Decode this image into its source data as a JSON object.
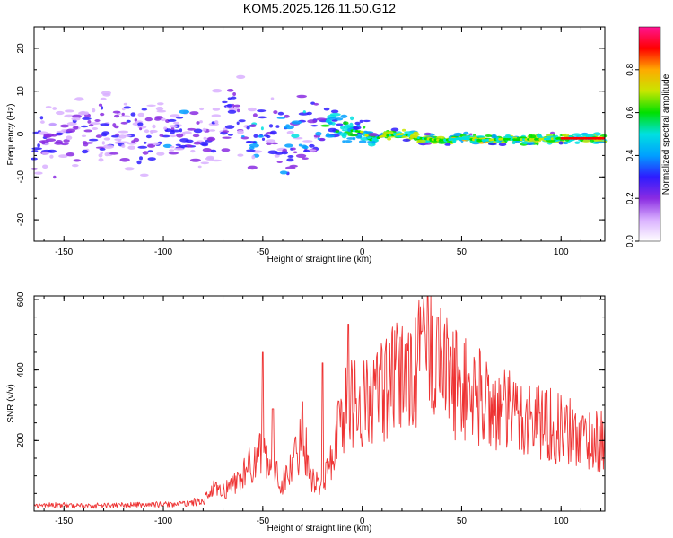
{
  "figure": {
    "title": "KOM5.2025.126.11.50.G12"
  },
  "chart_data": [
    {
      "type": "heatmap",
      "title": "KOM5.2025.126.11.50.G12",
      "xlabel": "Height of straight line (km)",
      "ylabel": "Frequency (Hz)",
      "xlim": [
        -165,
        122
      ],
      "ylim": [
        -25,
        25
      ],
      "x_ticks": [
        "-150",
        "-100",
        "-50",
        "0",
        "50",
        "100"
      ],
      "y_ticks": [
        "20",
        "10",
        "0",
        "-10",
        "-20"
      ],
      "colorbar": {
        "label": "Normalized spectral amplitude",
        "range": [
          0,
          1
        ],
        "ticks": [
          "0.0",
          "0.2",
          "0.4",
          "0.6",
          "0.8"
        ],
        "colors": [
          "#ffffff",
          "#d9b0ff",
          "#8a2be2",
          "#2e1cff",
          "#00a0ff",
          "#00e0e0",
          "#00e000",
          "#c8e600",
          "#ffaa00",
          "#ff0000",
          "#ff1493"
        ]
      },
      "ridge": {
        "x": [
          -165,
          -150,
          -135,
          -120,
          -105,
          -90,
          -80,
          -70,
          -65,
          -55,
          -45,
          -38,
          -30,
          -25,
          -18,
          -10,
          -5,
          0,
          5,
          10,
          20,
          30,
          40,
          50,
          60,
          70,
          80,
          90,
          100,
          110,
          122
        ],
        "y": [
          0.5,
          -0.5,
          1.0,
          0.0,
          -0.5,
          0.5,
          -2.0,
          1.0,
          4.0,
          -1.0,
          0.5,
          -4.0,
          0.0,
          2.0,
          2.5,
          1.5,
          0.8,
          0.5,
          -1.5,
          -0.5,
          0.0,
          -1.0,
          -1.5,
          -1.0,
          -1.5,
          -1.2,
          -1.3,
          -1.2,
          -1.0,
          -1.0,
          -1.0
        ]
      }
    },
    {
      "type": "line",
      "xlabel": "Height of straight line (km)",
      "ylabel": "SNR (v/v)",
      "xlim": [
        -165,
        122
      ],
      "ylim": [
        0,
        610
      ],
      "x_ticks": [
        "-150",
        "-100",
        "-50",
        "0",
        "50",
        "100"
      ],
      "y_ticks": [
        "200",
        "400",
        "600"
      ],
      "color": "#ee3333",
      "envelope": {
        "x": [
          -165,
          -140,
          -110,
          -90,
          -80,
          -75,
          -70,
          -62,
          -55,
          -50,
          -45,
          -40,
          -35,
          -30,
          -25,
          -20,
          -15,
          -10,
          -5,
          0,
          10,
          20,
          30,
          35,
          40,
          50,
          60,
          70,
          80,
          90,
          100,
          110,
          122
        ],
        "y": [
          18,
          15,
          18,
          20,
          30,
          60,
          55,
          90,
          140,
          180,
          120,
          80,
          130,
          220,
          90,
          70,
          160,
          280,
          320,
          300,
          340,
          380,
          420,
          470,
          400,
          350,
          320,
          280,
          270,
          260,
          230,
          210,
          195
        ]
      },
      "peaks": [
        {
          "x": -50,
          "y": 450
        },
        {
          "x": -45,
          "y": 290
        },
        {
          "x": -30,
          "y": 310
        },
        {
          "x": -20,
          "y": 420
        },
        {
          "x": -7,
          "y": 530
        },
        {
          "x": 30,
          "y": 510
        },
        {
          "x": 33,
          "y": 610
        },
        {
          "x": 38,
          "y": 550
        },
        {
          "x": 43,
          "y": 490
        }
      ]
    }
  ]
}
